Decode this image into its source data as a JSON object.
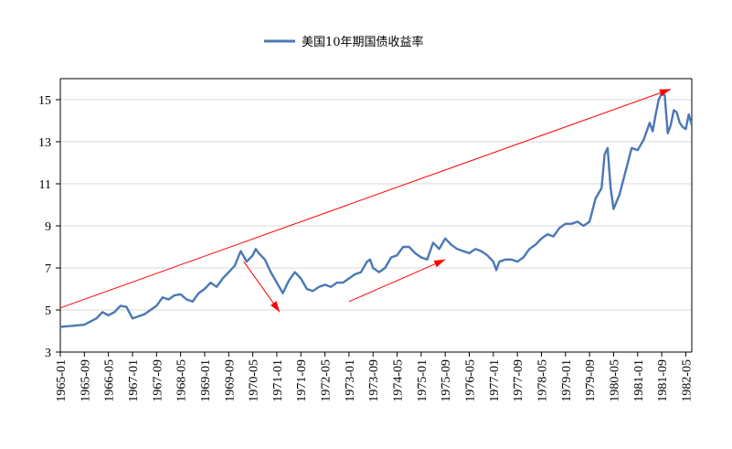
{
  "chart_data": {
    "type": "line",
    "title": "",
    "xlabel": "",
    "ylabel": "",
    "ylim": [
      3,
      16
    ],
    "yticks": [
      3,
      5,
      7,
      9,
      11,
      13,
      15
    ],
    "grid": "horizontal",
    "legend": {
      "placement": "top-center",
      "entries": [
        "美国10年期国债收益率"
      ]
    },
    "x_tick_labels": [
      "1965-01",
      "1965-09",
      "1966-05",
      "1967-01",
      "1967-09",
      "1968-05",
      "1969-01",
      "1969-09",
      "1970-05",
      "1971-01",
      "1971-09",
      "1972-05",
      "1973-01",
      "1973-09",
      "1974-05",
      "1975-01",
      "1975-09",
      "1976-05",
      "1977-01",
      "1977-09",
      "1978-05",
      "1979-01",
      "1979-09",
      "1980-05",
      "1981-01",
      "1981-09",
      "1982-05"
    ],
    "series": [
      {
        "name": "美国10年期国债收益率",
        "color": "#4a78b5",
        "points": [
          [
            "1965-01",
            4.2
          ],
          [
            "1965-05",
            4.25
          ],
          [
            "1965-09",
            4.3
          ],
          [
            "1966-01",
            4.6
          ],
          [
            "1966-03",
            4.9
          ],
          [
            "1966-05",
            4.75
          ],
          [
            "1966-07",
            4.9
          ],
          [
            "1966-09",
            5.2
          ],
          [
            "1966-11",
            5.15
          ],
          [
            "1967-01",
            4.6
          ],
          [
            "1967-03",
            4.7
          ],
          [
            "1967-05",
            4.8
          ],
          [
            "1967-07",
            5.0
          ],
          [
            "1967-09",
            5.2
          ],
          [
            "1967-11",
            5.6
          ],
          [
            "1968-01",
            5.5
          ],
          [
            "1968-03",
            5.7
          ],
          [
            "1968-05",
            5.75
          ],
          [
            "1968-07",
            5.5
          ],
          [
            "1968-09",
            5.4
          ],
          [
            "1968-11",
            5.8
          ],
          [
            "1969-01",
            6.0
          ],
          [
            "1969-03",
            6.3
          ],
          [
            "1969-05",
            6.1
          ],
          [
            "1969-07",
            6.5
          ],
          [
            "1969-09",
            6.8
          ],
          [
            "1969-11",
            7.1
          ],
          [
            "1970-01",
            7.8
          ],
          [
            "1970-03",
            7.3
          ],
          [
            "1970-05",
            7.6
          ],
          [
            "1970-06",
            7.9
          ],
          [
            "1970-07",
            7.7
          ],
          [
            "1970-09",
            7.4
          ],
          [
            "1970-11",
            6.8
          ],
          [
            "1971-01",
            6.3
          ],
          [
            "1971-03",
            5.8
          ],
          [
            "1971-05",
            6.4
          ],
          [
            "1971-07",
            6.8
          ],
          [
            "1971-09",
            6.5
          ],
          [
            "1971-11",
            6.0
          ],
          [
            "1972-01",
            5.9
          ],
          [
            "1972-03",
            6.1
          ],
          [
            "1972-05",
            6.2
          ],
          [
            "1972-07",
            6.1
          ],
          [
            "1972-09",
            6.3
          ],
          [
            "1972-11",
            6.3
          ],
          [
            "1973-01",
            6.5
          ],
          [
            "1973-03",
            6.7
          ],
          [
            "1973-05",
            6.8
          ],
          [
            "1973-07",
            7.3
          ],
          [
            "1973-08",
            7.4
          ],
          [
            "1973-09",
            7.0
          ],
          [
            "1973-11",
            6.8
          ],
          [
            "1974-01",
            7.0
          ],
          [
            "1974-03",
            7.5
          ],
          [
            "1974-05",
            7.6
          ],
          [
            "1974-07",
            8.0
          ],
          [
            "1974-09",
            8.0
          ],
          [
            "1974-11",
            7.7
          ],
          [
            "1975-01",
            7.5
          ],
          [
            "1975-03",
            7.4
          ],
          [
            "1975-05",
            8.2
          ],
          [
            "1975-07",
            7.9
          ],
          [
            "1975-09",
            8.4
          ],
          [
            "1975-11",
            8.1
          ],
          [
            "1976-01",
            7.9
          ],
          [
            "1976-03",
            7.8
          ],
          [
            "1976-05",
            7.7
          ],
          [
            "1976-07",
            7.9
          ],
          [
            "1976-09",
            7.8
          ],
          [
            "1976-11",
            7.6
          ],
          [
            "1977-01",
            7.3
          ],
          [
            "1977-02",
            6.9
          ],
          [
            "1977-03",
            7.3
          ],
          [
            "1977-05",
            7.4
          ],
          [
            "1977-07",
            7.4
          ],
          [
            "1977-09",
            7.3
          ],
          [
            "1977-11",
            7.5
          ],
          [
            "1978-01",
            7.9
          ],
          [
            "1978-03",
            8.1
          ],
          [
            "1978-05",
            8.4
          ],
          [
            "1978-07",
            8.6
          ],
          [
            "1978-09",
            8.5
          ],
          [
            "1978-11",
            8.9
          ],
          [
            "1979-01",
            9.1
          ],
          [
            "1979-03",
            9.1
          ],
          [
            "1979-05",
            9.2
          ],
          [
            "1979-07",
            9.0
          ],
          [
            "1979-09",
            9.2
          ],
          [
            "1979-11",
            10.3
          ],
          [
            "1980-01",
            10.8
          ],
          [
            "1980-02",
            12.4
          ],
          [
            "1980-03",
            12.7
          ],
          [
            "1980-04",
            10.8
          ],
          [
            "1980-05",
            9.8
          ],
          [
            "1980-07",
            10.5
          ],
          [
            "1980-09",
            11.6
          ],
          [
            "1980-11",
            12.7
          ],
          [
            "1981-01",
            12.6
          ],
          [
            "1981-03",
            13.1
          ],
          [
            "1981-05",
            13.9
          ],
          [
            "1981-06",
            13.5
          ],
          [
            "1981-07",
            14.3
          ],
          [
            "1981-08",
            15.0
          ],
          [
            "1981-09",
            15.3
          ],
          [
            "1981-10",
            15.2
          ],
          [
            "1981-11",
            13.4
          ],
          [
            "1981-12",
            13.8
          ],
          [
            "1982-01",
            14.5
          ],
          [
            "1982-02",
            14.4
          ],
          [
            "1982-03",
            13.9
          ],
          [
            "1982-04",
            13.7
          ],
          [
            "1982-05",
            13.6
          ],
          [
            "1982-06",
            14.3
          ],
          [
            "1982-07",
            13.8
          ]
        ]
      }
    ],
    "annotations": [
      {
        "type": "arrow",
        "color": "#ff0000",
        "from": [
          "1965-01",
          5.1
        ],
        "to": [
          "1981-12",
          15.5
        ]
      },
      {
        "type": "arrow",
        "color": "#ff0000",
        "from": [
          "1970-02",
          7.3
        ],
        "to": [
          "1971-02",
          4.9
        ]
      },
      {
        "type": "arrow",
        "color": "#ff0000",
        "from": [
          "1973-01",
          5.4
        ],
        "to": [
          "1975-09",
          7.4
        ]
      }
    ]
  }
}
